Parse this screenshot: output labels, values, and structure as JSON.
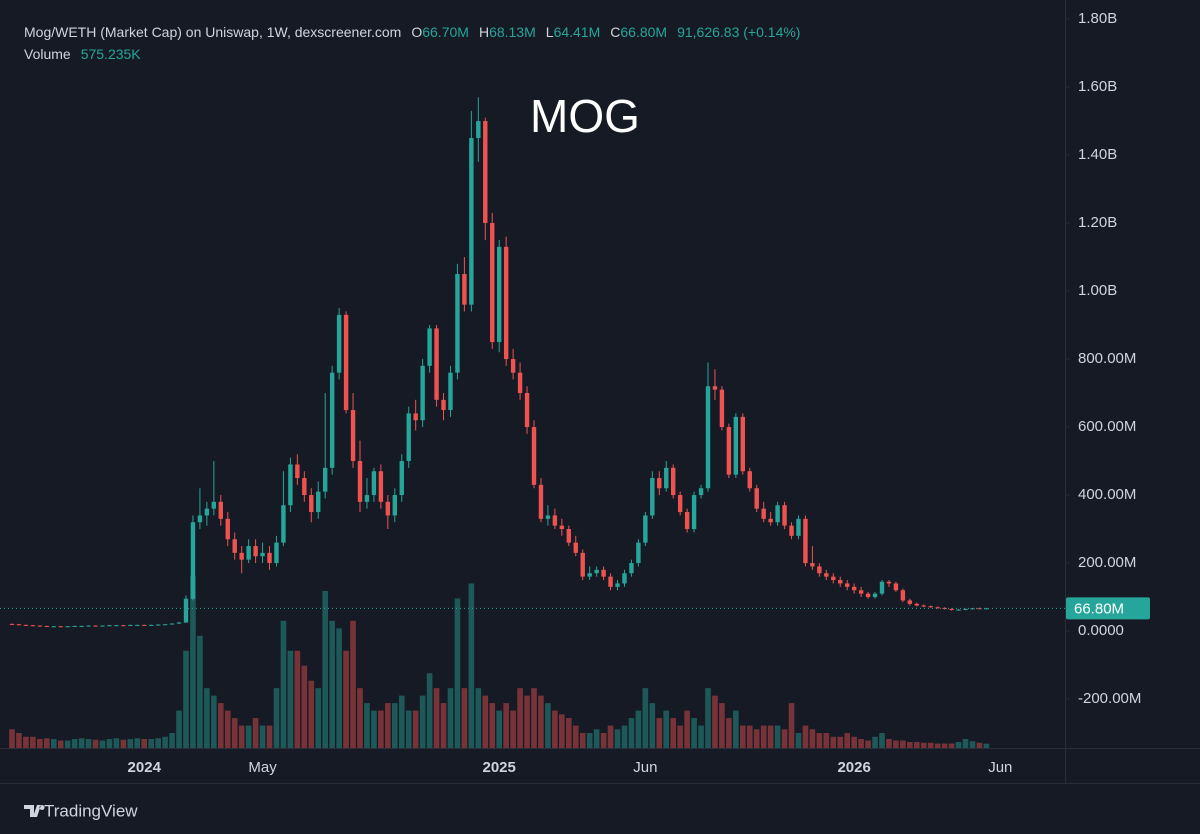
{
  "chart_data": {
    "type": "candlestick",
    "title": "MOG",
    "header": {
      "symbol": "Mog/WETH (Market Cap) on Uniswap, 1W, dexscreener.com",
      "ohlc": [
        {
          "key": "O",
          "value": 66.7,
          "label": "66.70M"
        },
        {
          "key": "H",
          "value": 68.13,
          "label": "68.13M"
        },
        {
          "key": "L",
          "value": 64.41,
          "label": "64.41M"
        },
        {
          "key": "C",
          "value": 66.8,
          "label": "66.80M"
        }
      ],
      "change": "91,626.83 (+0.14%)",
      "volume_title": "Volume",
      "volume": {
        "value": 575235,
        "label": "575.235K"
      }
    },
    "branding": "TradingView",
    "up_color": "#26a69a",
    "down_color": "#ef5350",
    "last_price": {
      "value": 66.8,
      "label": "66.80M"
    },
    "ylim": [
      -344,
      1856
    ],
    "yticks": [
      {
        "value": -200,
        "label": "-200.00M"
      },
      {
        "value": 0,
        "label": "0.0000"
      },
      {
        "value": 200,
        "label": "200.00M"
      },
      {
        "value": 400,
        "label": "400.00M"
      },
      {
        "value": 600,
        "label": "600.00M"
      },
      {
        "value": 800,
        "label": "800.00M"
      },
      {
        "value": 1000,
        "label": "1.00B"
      },
      {
        "value": 1200,
        "label": "1.20B"
      },
      {
        "value": 1400,
        "label": "1.40B"
      },
      {
        "value": 1600,
        "label": "1.60B"
      },
      {
        "value": 1800,
        "label": "1.80B"
      }
    ],
    "volume_lim": [
      0,
      100000000.0
    ],
    "categories": [
      null,
      null,
      null,
      null,
      null,
      null,
      null,
      null,
      null,
      null,
      null,
      null,
      null,
      null,
      null,
      null,
      null,
      null,
      null,
      "2024",
      null,
      null,
      null,
      null,
      null,
      null,
      null,
      null,
      null,
      null,
      null,
      null,
      null,
      null,
      null,
      null,
      "May",
      null,
      null,
      null,
      null,
      null,
      null,
      null,
      null,
      null,
      null,
      null,
      null,
      null,
      null,
      null,
      null,
      null,
      null,
      null,
      null,
      null,
      null,
      null,
      null,
      null,
      null,
      null,
      null,
      null,
      null,
      null,
      null,
      null,
      "2025",
      null,
      null,
      null,
      null,
      null,
      null,
      null,
      null,
      null,
      null,
      null,
      null,
      null,
      null,
      null,
      null,
      null,
      null,
      null,
      null,
      "Jun",
      null,
      null,
      null,
      null,
      null,
      null,
      null,
      null,
      null,
      null,
      null,
      null,
      null,
      null,
      null,
      null,
      null,
      null,
      null,
      null,
      null,
      null,
      null,
      null,
      null,
      null,
      null,
      null,
      null,
      "2026",
      null,
      null,
      null,
      null,
      null,
      null,
      null,
      null,
      null,
      null,
      null,
      null,
      null,
      null,
      null,
      null,
      null,
      null,
      null,
      null,
      "Jun",
      null,
      null,
      null,
      null,
      null,
      null,
      null,
      null,
      null
    ],
    "ohlc": [
      [
        21,
        22,
        19,
        20
      ],
      [
        20,
        21,
        17,
        18
      ],
      [
        18,
        19,
        16,
        17
      ],
      [
        17,
        18,
        15,
        16
      ],
      [
        16,
        17,
        14,
        15
      ],
      [
        15,
        16,
        13,
        14
      ],
      [
        14,
        15,
        13,
        14
      ],
      [
        14,
        15,
        12,
        13
      ],
      [
        13,
        15,
        12,
        14
      ],
      [
        14,
        16,
        13,
        15
      ],
      [
        15,
        16,
        14,
        15
      ],
      [
        15,
        17,
        14,
        16
      ],
      [
        16,
        17,
        14,
        15
      ],
      [
        15,
        17,
        14,
        16
      ],
      [
        16,
        18,
        15,
        17
      ],
      [
        17,
        18,
        16,
        17
      ],
      [
        17,
        18,
        15,
        16
      ],
      [
        16,
        19,
        15,
        18
      ],
      [
        18,
        19,
        17,
        18
      ],
      [
        18,
        19,
        16,
        17
      ],
      [
        17,
        19,
        16,
        18
      ],
      [
        18,
        20,
        17,
        19
      ],
      [
        19,
        21,
        18,
        20
      ],
      [
        20,
        23,
        19,
        22
      ],
      [
        22,
        27,
        21,
        25
      ],
      [
        25,
        105,
        24,
        95
      ],
      [
        95,
        340,
        90,
        320
      ],
      [
        320,
        420,
        300,
        340
      ],
      [
        340,
        380,
        310,
        360
      ],
      [
        360,
        500,
        340,
        380
      ],
      [
        380,
        400,
        310,
        330
      ],
      [
        330,
        350,
        250,
        270
      ],
      [
        270,
        290,
        210,
        230
      ],
      [
        230,
        250,
        170,
        210
      ],
      [
        210,
        270,
        200,
        250
      ],
      [
        250,
        270,
        200,
        220
      ],
      [
        220,
        260,
        200,
        230
      ],
      [
        230,
        250,
        180,
        200
      ],
      [
        200,
        280,
        190,
        260
      ],
      [
        260,
        470,
        250,
        370
      ],
      [
        370,
        510,
        350,
        490
      ],
      [
        490,
        520,
        430,
        450
      ],
      [
        450,
        470,
        380,
        400
      ],
      [
        400,
        420,
        320,
        350
      ],
      [
        350,
        440,
        330,
        410
      ],
      [
        410,
        700,
        390,
        480
      ],
      [
        480,
        780,
        460,
        760
      ],
      [
        760,
        950,
        740,
        930
      ],
      [
        930,
        940,
        640,
        650
      ],
      [
        650,
        700,
        480,
        500
      ],
      [
        500,
        560,
        350,
        380
      ],
      [
        380,
        450,
        360,
        400
      ],
      [
        400,
        480,
        380,
        470
      ],
      [
        470,
        490,
        360,
        380
      ],
      [
        380,
        400,
        300,
        340
      ],
      [
        340,
        420,
        320,
        400
      ],
      [
        400,
        520,
        380,
        500
      ],
      [
        500,
        660,
        480,
        640
      ],
      [
        640,
        680,
        590,
        620
      ],
      [
        620,
        800,
        600,
        780
      ],
      [
        780,
        900,
        760,
        890
      ],
      [
        890,
        900,
        660,
        680
      ],
      [
        680,
        700,
        620,
        650
      ],
      [
        650,
        780,
        630,
        760
      ],
      [
        760,
        1080,
        740,
        1050
      ],
      [
        1050,
        1100,
        940,
        960
      ],
      [
        960,
        1530,
        940,
        1450
      ],
      [
        1450,
        1570,
        1380,
        1500
      ],
      [
        1500,
        1510,
        1150,
        1200
      ],
      [
        1200,
        1230,
        830,
        850
      ],
      [
        850,
        1150,
        820,
        1130
      ],
      [
        1130,
        1160,
        780,
        800
      ],
      [
        800,
        830,
        740,
        760
      ],
      [
        760,
        790,
        680,
        700
      ],
      [
        700,
        720,
        580,
        600
      ],
      [
        600,
        620,
        420,
        430
      ],
      [
        430,
        450,
        320,
        330
      ],
      [
        330,
        370,
        310,
        340
      ],
      [
        340,
        360,
        300,
        310
      ],
      [
        310,
        330,
        280,
        300
      ],
      [
        300,
        310,
        250,
        260
      ],
      [
        260,
        280,
        220,
        230
      ],
      [
        230,
        240,
        150,
        160
      ],
      [
        160,
        190,
        150,
        170
      ],
      [
        170,
        190,
        160,
        180
      ],
      [
        180,
        190,
        150,
        160
      ],
      [
        160,
        170,
        120,
        130
      ],
      [
        130,
        150,
        120,
        140
      ],
      [
        140,
        180,
        130,
        170
      ],
      [
        170,
        210,
        160,
        200
      ],
      [
        200,
        270,
        190,
        260
      ],
      [
        260,
        350,
        250,
        340
      ],
      [
        340,
        470,
        330,
        450
      ],
      [
        450,
        470,
        400,
        420
      ],
      [
        420,
        500,
        410,
        480
      ],
      [
        480,
        490,
        390,
        400
      ],
      [
        400,
        410,
        340,
        350
      ],
      [
        350,
        360,
        290,
        300
      ],
      [
        300,
        410,
        290,
        400
      ],
      [
        400,
        430,
        390,
        420
      ],
      [
        420,
        790,
        410,
        720
      ],
      [
        720,
        770,
        680,
        710
      ],
      [
        710,
        720,
        590,
        600
      ],
      [
        600,
        610,
        450,
        460
      ],
      [
        460,
        640,
        450,
        630
      ],
      [
        630,
        640,
        460,
        470
      ],
      [
        470,
        480,
        410,
        420
      ],
      [
        420,
        430,
        350,
        360
      ],
      [
        360,
        380,
        320,
        330
      ],
      [
        330,
        350,
        310,
        320
      ],
      [
        320,
        380,
        310,
        370
      ],
      [
        370,
        380,
        300,
        310
      ],
      [
        310,
        320,
        270,
        280
      ],
      [
        280,
        340,
        270,
        330
      ],
      [
        330,
        340,
        190,
        200
      ],
      [
        200,
        250,
        180,
        190
      ],
      [
        190,
        200,
        160,
        170
      ],
      [
        170,
        180,
        150,
        160
      ],
      [
        160,
        170,
        140,
        150
      ],
      [
        150,
        160,
        130,
        140
      ],
      [
        140,
        150,
        120,
        130
      ],
      [
        130,
        140,
        110,
        120
      ],
      [
        120,
        130,
        100,
        110
      ],
      [
        110,
        115,
        95,
        100
      ],
      [
        100,
        115,
        95,
        110
      ],
      [
        110,
        150,
        105,
        145
      ],
      [
        145,
        150,
        130,
        140
      ],
      [
        140,
        145,
        115,
        120
      ],
      [
        120,
        125,
        85,
        90
      ],
      [
        90,
        95,
        75,
        80
      ],
      [
        80,
        84,
        72,
        75
      ],
      [
        75,
        78,
        70,
        73
      ],
      [
        73,
        75,
        68,
        70
      ],
      [
        70,
        72,
        66,
        68
      ],
      [
        68,
        70,
        63,
        65
      ],
      [
        65,
        67,
        60,
        62
      ],
      [
        62,
        65,
        60,
        63
      ],
      [
        63,
        66,
        61,
        65
      ],
      [
        65,
        68,
        63,
        67
      ],
      [
        67,
        69,
        65,
        66.7
      ],
      [
        66.7,
        68.13,
        64.41,
        66.8
      ],
      null,
      null,
      null,
      null,
      null,
      null,
      null,
      null,
      null,
      null,
      null
    ],
    "volume": [
      2500000.0,
      2000000.0,
      1500000.0,
      1500000.0,
      1200000.0,
      1300000.0,
      1200000.0,
      1000000.0,
      1000000.0,
      1200000.0,
      1300000.0,
      1200000.0,
      1100000.0,
      1000000.0,
      1200000.0,
      1300000.0,
      1100000.0,
      1200000.0,
      1300000.0,
      1200000.0,
      1200000.0,
      1300000.0,
      1500000.0,
      2000000.0,
      5000000.0,
      13000000.0,
      23000000.0,
      15000000.0,
      8000000.0,
      7000000.0,
      6000000.0,
      5000000.0,
      4000000.0,
      3000000.0,
      3000000.0,
      4000000.0,
      3000000.0,
      3000000.0,
      8000000.0,
      17000000.0,
      13000000.0,
      13000000.0,
      11000000.0,
      9000000.0,
      8000000.0,
      21000000.0,
      17000000.0,
      16000000.0,
      13000000.0,
      17000000.0,
      8000000.0,
      6000000.0,
      5000000.0,
      5000000.0,
      6000000.0,
      6000000.0,
      7000000.0,
      5000000.0,
      5000000.0,
      7000000.0,
      10000000.0,
      8000000.0,
      6000000.0,
      8000000.0,
      20000000.0,
      8000000.0,
      22000000.0,
      8000000.0,
      7000000.0,
      6000000.0,
      5000000.0,
      6000000.0,
      5000000.0,
      8000000.0,
      7000000.0,
      8000000.0,
      7000000.0,
      6000000.0,
      5000000.0,
      4500000.0,
      4000000.0,
      3000000.0,
      2000000.0,
      2000000.0,
      2500000.0,
      2000000.0,
      3000000.0,
      2500000.0,
      3000000.0,
      4000000.0,
      5000000.0,
      8000000.0,
      6000000.0,
      4000000.0,
      5000000.0,
      4000000.0,
      3000000.0,
      5000000.0,
      4000000.0,
      3000000.0,
      8000000.0,
      7000000.0,
      6000000.0,
      4000000.0,
      5000000.0,
      3000000.0,
      3000000.0,
      2500000.0,
      3000000.0,
      3000000.0,
      3000000.0,
      2500000.0,
      6000000.0,
      2000000.0,
      3000000.0,
      2500000.0,
      2000000.0,
      2000000.0,
      1500000.0,
      1500000.0,
      2000000.0,
      1500000.0,
      1200000.0,
      1000000.0,
      1500000.0,
      2000000.0,
      1200000.0,
      1000000.0,
      1000000.0,
      800000.0,
      800000.0,
      700000.0,
      700000.0,
      600000.0,
      600000.0,
      600000.0,
      800000.0,
      1200000.0,
      900000.0,
      700000.0,
      575235,
      null,
      null,
      null,
      null,
      null,
      null,
      null,
      null,
      null,
      null,
      null
    ]
  }
}
